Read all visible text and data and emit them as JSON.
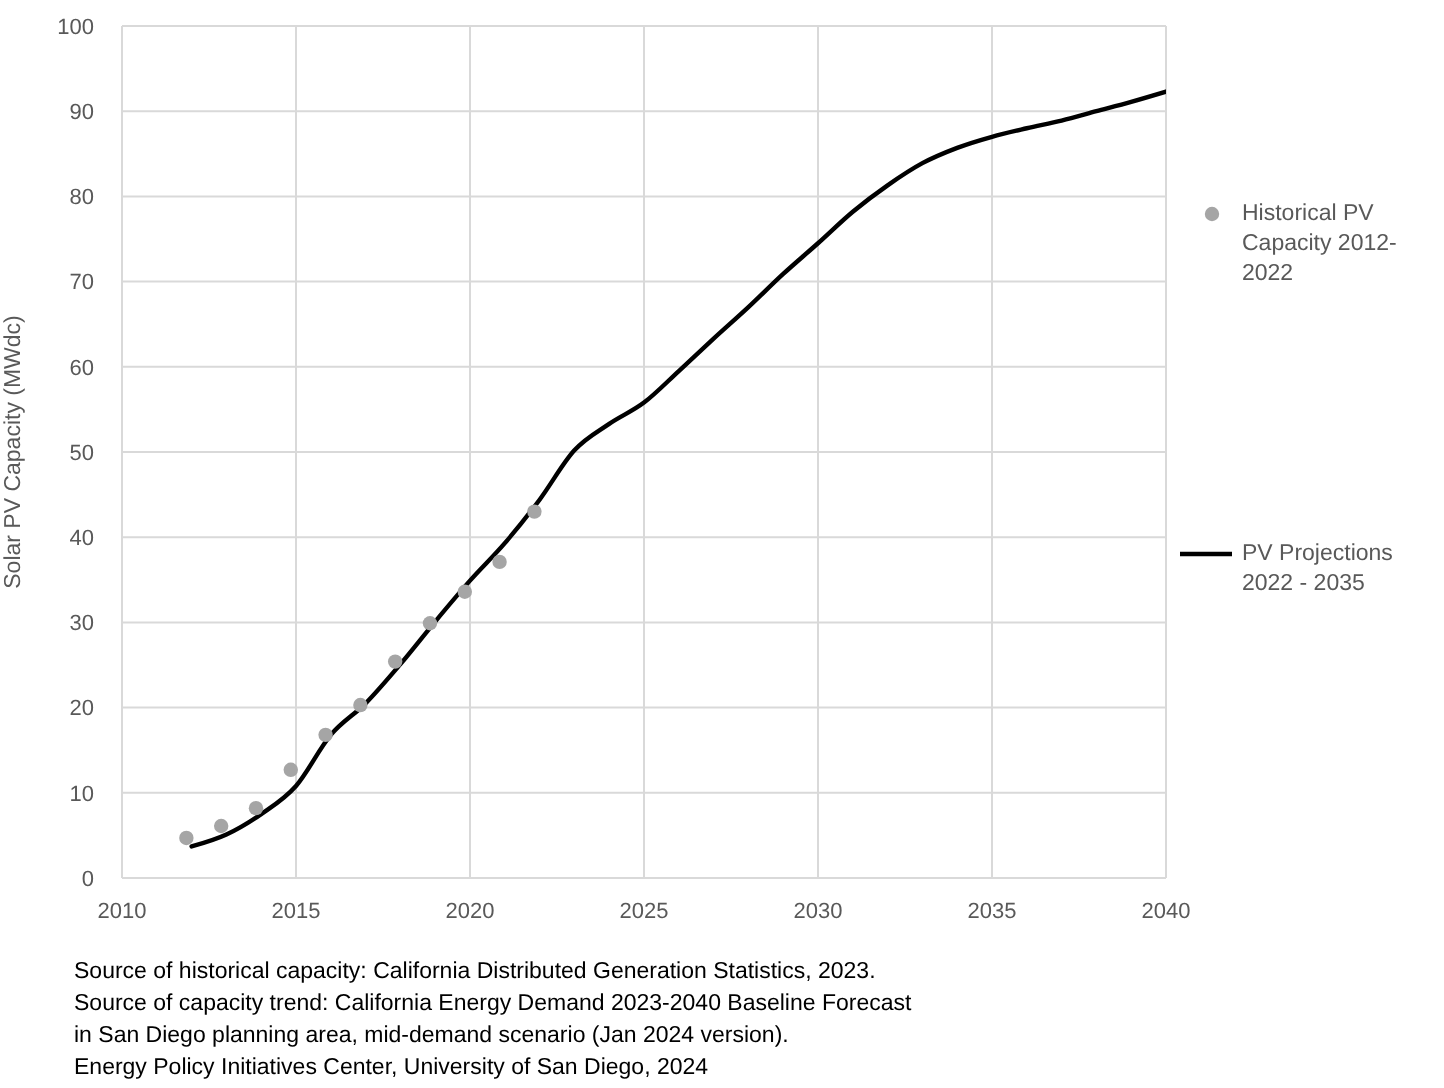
{
  "chart_data": {
    "type": "line",
    "ylabel": "Solar PV Capacity (MWdc)",
    "xlim": [
      2010,
      2040
    ],
    "xticks": [
      2010,
      2015,
      2020,
      2025,
      2030,
      2035,
      2040
    ],
    "ylim": [
      0,
      100
    ],
    "yticks": [
      0,
      10,
      20,
      30,
      40,
      50,
      60,
      70,
      80,
      90,
      100
    ],
    "grid": true,
    "legend": "right",
    "series": [
      {
        "name": "Historical PV Capacity 2012-2022",
        "type": "scatter",
        "color": "#a5a5a5",
        "marker": "circle",
        "x": [
          2011.85,
          2012.85,
          2013.85,
          2014.85,
          2015.85,
          2016.85,
          2017.85,
          2018.85,
          2019.85,
          2020.85,
          2021.85
        ],
        "values": [
          4.7,
          6.1,
          8.2,
          12.7,
          16.8,
          20.3,
          25.4,
          29.9,
          33.6,
          37.1,
          43.0
        ]
      },
      {
        "name": "PV Projections 2022 - 2035",
        "color": "#000000",
        "marker": "none",
        "line_style": "solid",
        "x": [
          2012,
          2013,
          2014,
          2015,
          2016,
          2017,
          2018,
          2019,
          2020,
          2021,
          2022,
          2023,
          2024,
          2025,
          2026,
          2027,
          2028,
          2029,
          2030,
          2031,
          2032,
          2033,
          2034,
          2035,
          2036,
          2037,
          2038,
          2039,
          2040
        ],
        "values": [
          3.7,
          5.1,
          7.5,
          10.8,
          16.8,
          20.5,
          25.1,
          30.1,
          34.9,
          39.3,
          44.4,
          50.2,
          53.3,
          55.8,
          59.5,
          63.3,
          67.0,
          70.9,
          74.5,
          78.2,
          81.3,
          83.9,
          85.7,
          87.0,
          88.0,
          88.9,
          90.0,
          91.1,
          92.3
        ]
      }
    ],
    "annotations": [
      "Source of historical capacity: California Distributed Generation Statistics, 2023.",
      "Source of capacity trend: California Energy Demand 2023-2040 Baseline Forecast in San Diego planning area, mid-demand scenario (Jan 2024 version).",
      "Energy Policy Initiatives Center, University of San Diego, 2024"
    ]
  }
}
